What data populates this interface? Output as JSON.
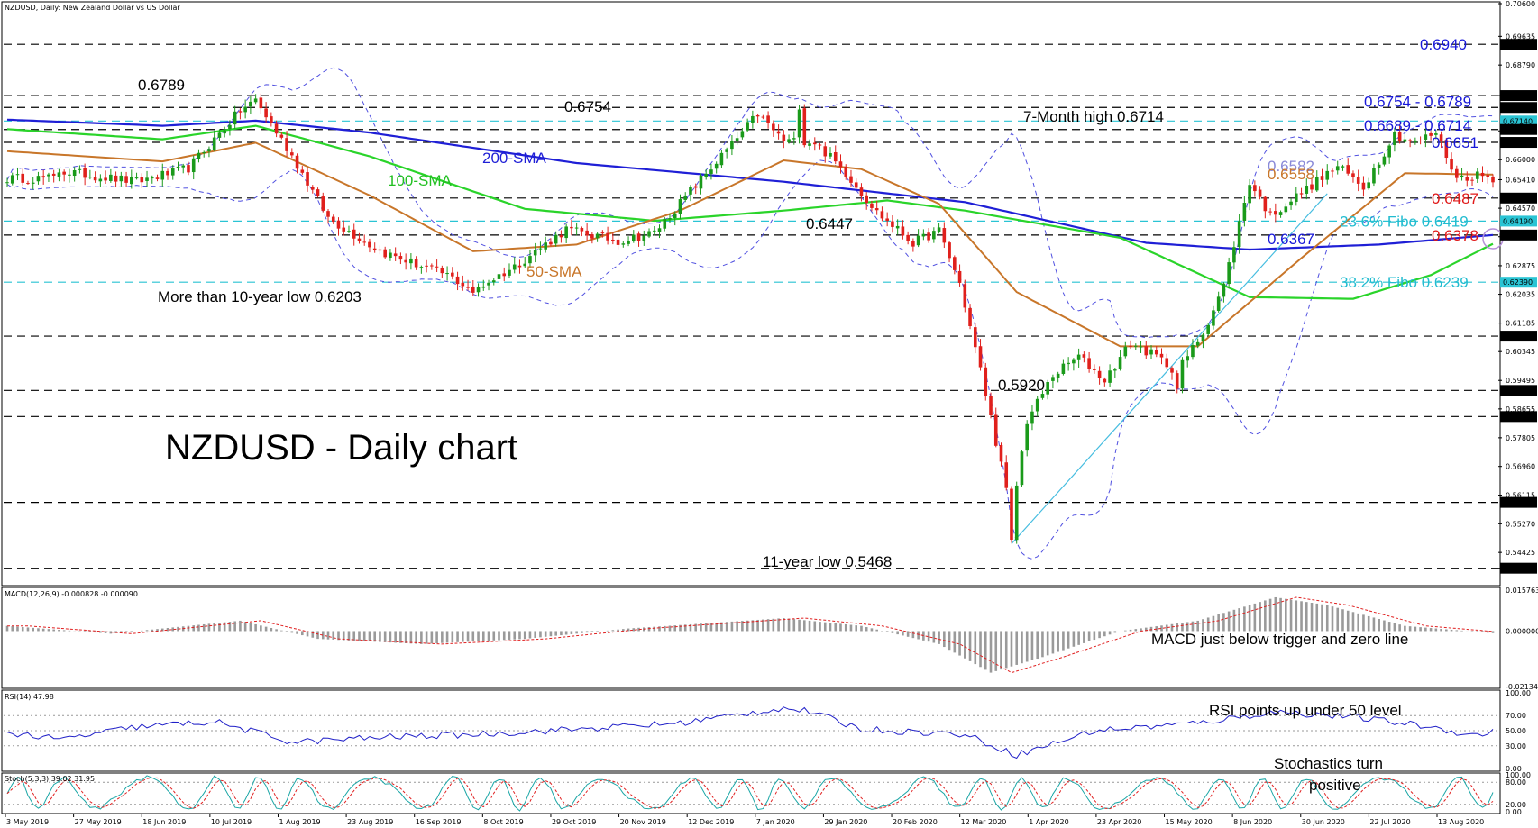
{
  "header": {
    "main_title": "NZDUSD, Daily:  New Zealand Dollar vs US Dollar",
    "macd_title": "MACD(12,26,9) -0.000828 -0.000090",
    "rsi_title": "RSI(14) 47.98",
    "stoch_title": "Stoch(5,3,3) 39.02 31.95"
  },
  "colors": {
    "bull": "#1a9a1a",
    "bear": "#e0201c",
    "sma200": "#1f1fd6",
    "sma100": "#2ad42a",
    "sma50": "#c8762a",
    "bollinger": "#5050e0",
    "fibo": "#2ac4d4",
    "dashed": "#000000",
    "trend": "#46bde0",
    "rsi": "#2020c8",
    "stoch_main": "#1aa6a6",
    "stoch_signal": "#e02020",
    "macd_hist": "#9a9a9a",
    "macd_signal": "#e02020"
  },
  "chart_data": {
    "type": "candlestick",
    "symbol": "NZDUSD",
    "timeframe": "Daily",
    "ylim": [
      0.535,
      0.706
    ],
    "price_levels": [
      "0.69400",
      "0.67890",
      "0.67540",
      "0.67140",
      "0.66890",
      "0.66510",
      "0.64870",
      "0.64190",
      "0.63780",
      "0.62390",
      "0.60800",
      "0.59200",
      "0.58430",
      "0.55900",
      "0.53960"
    ],
    "highlight_levels": [
      {
        "text": "0.67140",
        "style": "fibo",
        "value": 0.6714
      },
      {
        "text": "0.64190",
        "style": "fibo",
        "value": 0.6419
      },
      {
        "text": "0.62390",
        "style": "fibo",
        "value": 0.6239
      }
    ],
    "price_ticks": [
      "0.70600",
      "0.69635",
      "0.68790",
      "0.67890",
      "0.66850",
      "0.66000",
      "0.65410",
      "0.64570",
      "0.63730",
      "0.62875",
      "0.62035",
      "0.61185",
      "0.60345",
      "0.59495",
      "0.58655",
      "0.57805",
      "0.56960",
      "0.56115",
      "0.55270",
      "0.54425",
      "0.53960"
    ],
    "price_tick_values": [
      0.706,
      0.69635,
      0.6879,
      0.6789,
      0.6685,
      0.66,
      0.6541,
      0.6457,
      0.6373,
      0.62875,
      0.62035,
      0.61185,
      0.60345,
      0.59495,
      0.58655,
      0.57805,
      0.5696,
      0.56115,
      0.5527,
      0.54425,
      0.5396
    ],
    "date_labels": [
      "3 May 2019",
      "27 May 2019",
      "18 Jun 2019",
      "10 Jul 2019",
      "1 Aug 2019",
      "23 Aug 2019",
      "16 Sep 2019",
      "8 Oct 2019",
      "29 Oct 2019",
      "20 Nov 2019",
      "12 Dec 2019",
      "7 Jan 2020",
      "29 Jan 2020",
      "20 Feb 2020",
      "12 Mar 2020",
      "1 Apr 2020",
      "23 Apr 2020",
      "15 May 2020",
      "8 Jun 2020",
      "30 Jun 2020",
      "22 Jul 2020",
      "13 Aug 2020"
    ],
    "key_points": [
      {
        "index": 10,
        "value": 0.6567
      },
      {
        "index": 25,
        "value": 0.6535
      },
      {
        "index": 35,
        "value": 0.6575
      },
      {
        "index": 45,
        "value": 0.6745
      },
      {
        "index": 48,
        "value": 0.6775
      },
      {
        "index": 55,
        "value": 0.6612
      },
      {
        "index": 62,
        "value": 0.6428
      },
      {
        "index": 72,
        "value": 0.633
      },
      {
        "index": 85,
        "value": 0.626
      },
      {
        "index": 90,
        "value": 0.6215
      },
      {
        "index": 98,
        "value": 0.6285
      },
      {
        "index": 108,
        "value": 0.6395
      },
      {
        "index": 118,
        "value": 0.636
      },
      {
        "index": 125,
        "value": 0.6385
      },
      {
        "index": 133,
        "value": 0.6525
      },
      {
        "index": 140,
        "value": 0.6645
      },
      {
        "index": 145,
        "value": 0.6735
      },
      {
        "index": 150,
        "value": 0.6655
      },
      {
        "index": 156,
        "value": 0.6652
      },
      {
        "index": 162,
        "value": 0.6562
      },
      {
        "index": 168,
        "value": 0.6445
      },
      {
        "index": 175,
        "value": 0.6355
      },
      {
        "index": 180,
        "value": 0.639
      },
      {
        "index": 184,
        "value": 0.6235
      },
      {
        "index": 188,
        "value": 0.598
      },
      {
        "index": 192,
        "value": 0.57
      },
      {
        "index": 194,
        "value": 0.5548
      },
      {
        "index": 197,
        "value": 0.583
      },
      {
        "index": 202,
        "value": 0.5965
      },
      {
        "index": 207,
        "value": 0.602
      },
      {
        "index": 212,
        "value": 0.595
      },
      {
        "index": 217,
        "value": 0.606
      },
      {
        "index": 222,
        "value": 0.602
      },
      {
        "index": 226,
        "value": 0.5975
      },
      {
        "index": 231,
        "value": 0.609
      },
      {
        "index": 235,
        "value": 0.623
      },
      {
        "index": 240,
        "value": 0.6535
      },
      {
        "index": 244,
        "value": 0.6435
      },
      {
        "index": 248,
        "value": 0.648
      },
      {
        "index": 252,
        "value": 0.6525
      },
      {
        "index": 257,
        "value": 0.658
      },
      {
        "index": 262,
        "value": 0.652
      },
      {
        "index": 268,
        "value": 0.6675
      },
      {
        "index": 272,
        "value": 0.665
      },
      {
        "index": 276,
        "value": 0.668
      },
      {
        "index": 280,
        "value": 0.6545
      },
      {
        "index": 284,
        "value": 0.6555
      },
      {
        "index": 287,
        "value": 0.6545
      }
    ],
    "sma200_points": [
      [
        0,
        0.6718
      ],
      [
        30,
        0.67
      ],
      [
        48,
        0.6715
      ],
      [
        70,
        0.668
      ],
      [
        110,
        0.659
      ],
      [
        150,
        0.6535
      ],
      [
        185,
        0.6475
      ],
      [
        220,
        0.6355
      ],
      [
        240,
        0.6335
      ],
      [
        265,
        0.635
      ],
      [
        287,
        0.6378
      ]
    ],
    "sma100_points": [
      [
        0,
        0.669
      ],
      [
        30,
        0.666
      ],
      [
        48,
        0.67
      ],
      [
        70,
        0.661
      ],
      [
        100,
        0.6455
      ],
      [
        125,
        0.642
      ],
      [
        150,
        0.645
      ],
      [
        170,
        0.648
      ],
      [
        185,
        0.645
      ],
      [
        215,
        0.637
      ],
      [
        240,
        0.6195
      ],
      [
        260,
        0.619
      ],
      [
        275,
        0.626
      ],
      [
        287,
        0.6352
      ]
    ],
    "sma50_points": [
      [
        0,
        0.6625
      ],
      [
        30,
        0.6595
      ],
      [
        48,
        0.665
      ],
      [
        70,
        0.6495
      ],
      [
        90,
        0.633
      ],
      [
        110,
        0.635
      ],
      [
        130,
        0.645
      ],
      [
        150,
        0.6598
      ],
      [
        165,
        0.6572
      ],
      [
        180,
        0.647
      ],
      [
        195,
        0.621
      ],
      [
        215,
        0.605
      ],
      [
        230,
        0.605
      ],
      [
        250,
        0.631
      ],
      [
        270,
        0.656
      ],
      [
        287,
        0.6556
      ]
    ],
    "annotations": [
      {
        "text": "0.6789",
        "kind": "black"
      },
      {
        "text": "0.6754",
        "kind": "black"
      },
      {
        "text": "7-Month high 0.6714",
        "kind": "black"
      },
      {
        "text": "200-SMA",
        "kind": "sma200"
      },
      {
        "text": "100-SMA",
        "kind": "sma100"
      },
      {
        "text": "50-SMA",
        "kind": "sma50"
      },
      {
        "text": "0.6447",
        "kind": "black"
      },
      {
        "text": "More than 10-year low 0.6203",
        "kind": "black"
      },
      {
        "text": "0.5920",
        "kind": "black"
      },
      {
        "text": "11-year low 0.5468",
        "kind": "black"
      },
      {
        "text": "NZDUSD - Daily chart",
        "kind": "title"
      }
    ],
    "right_labels": [
      {
        "text": "0.6940",
        "kind": "blue"
      },
      {
        "text": "0.6754 - 0.6789",
        "kind": "blue"
      },
      {
        "text": "0.6689 - 0.6714",
        "kind": "blue"
      },
      {
        "text": "0.6651",
        "kind": "blue"
      },
      {
        "text": "0.6582",
        "kind": "lavender"
      },
      {
        "text": "0.6558",
        "kind": "orange"
      },
      {
        "text": "0.6487",
        "kind": "red"
      },
      {
        "text": "23.6% Fibo 0.6419",
        "kind": "cyan"
      },
      {
        "text": "0.6378",
        "kind": "red"
      },
      {
        "text": "0.6367",
        "kind": "blue"
      },
      {
        "text": "38.2% Fibo 0.6239",
        "kind": "cyan"
      }
    ],
    "macd": {
      "ticks": [
        "0.015763",
        "0.000000",
        "-0.021341"
      ],
      "tick_values": [
        0.015763,
        0.0,
        -0.021341
      ],
      "annotation": "MACD just below trigger and zero line",
      "key_points": [
        [
          0,
          0.002
        ],
        [
          20,
          -0.001
        ],
        [
          45,
          0.004
        ],
        [
          60,
          -0.003
        ],
        [
          80,
          -0.005
        ],
        [
          100,
          -0.003
        ],
        [
          120,
          0.001
        ],
        [
          150,
          0.005
        ],
        [
          165,
          0.002
        ],
        [
          180,
          -0.005
        ],
        [
          190,
          -0.016
        ],
        [
          200,
          -0.01
        ],
        [
          215,
          0.0
        ],
        [
          230,
          0.004
        ],
        [
          245,
          0.013
        ],
        [
          255,
          0.01
        ],
        [
          270,
          0.002
        ],
        [
          287,
          -0.0008
        ]
      ]
    },
    "rsi": {
      "ticks": [
        "100.00",
        "70.00",
        "50.00",
        "30.00",
        "0.00"
      ],
      "tick_values": [
        100,
        70,
        50,
        30,
        0
      ],
      "annotation": "RSI points up under 50 level",
      "key_points": [
        [
          0,
          48
        ],
        [
          10,
          38
        ],
        [
          25,
          55
        ],
        [
          40,
          62
        ],
        [
          55,
          35
        ],
        [
          75,
          42
        ],
        [
          90,
          45
        ],
        [
          110,
          52
        ],
        [
          130,
          60
        ],
        [
          150,
          80
        ],
        [
          155,
          75
        ],
        [
          165,
          52
        ],
        [
          185,
          45
        ],
        [
          195,
          18
        ],
        [
          210,
          50
        ],
        [
          230,
          60
        ],
        [
          245,
          75
        ],
        [
          260,
          68
        ],
        [
          275,
          55
        ],
        [
          283,
          44
        ],
        [
          287,
          48
        ]
      ]
    },
    "stoch": {
      "ticks": [
        "100.00",
        "80.00",
        "20.00",
        "0.00"
      ],
      "tick_values": [
        100,
        80,
        20,
        0
      ],
      "annotation_line1": "Stochastics turn",
      "annotation_line2": "positive",
      "seed": 7
    }
  }
}
